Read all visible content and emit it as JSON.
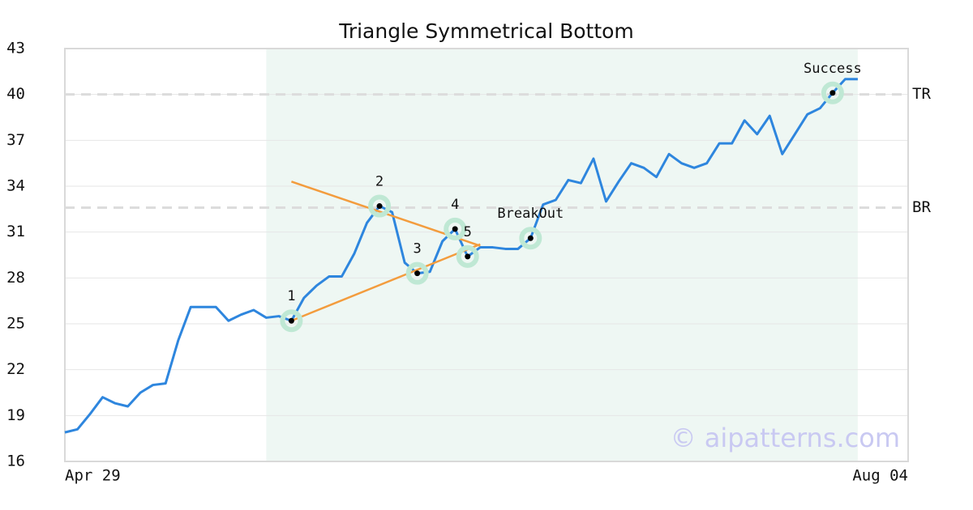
{
  "chart_data": {
    "type": "line",
    "title": "Triangle Symmetrical Bottom",
    "categories": [
      "Apr 29",
      null,
      null,
      null,
      null,
      null,
      null,
      null,
      null,
      null,
      null,
      null,
      null,
      null,
      null,
      null,
      null,
      null,
      null,
      null,
      null,
      null,
      null,
      null,
      null,
      null,
      null,
      null,
      null,
      null,
      null,
      null,
      null,
      null,
      null,
      null,
      null,
      null,
      null,
      null,
      null,
      null,
      null,
      null,
      null,
      null,
      null,
      null,
      null,
      null,
      null,
      null,
      null,
      null,
      null,
      null,
      null,
      null,
      null,
      null,
      null,
      null,
      null,
      null,
      null,
      null,
      null,
      "Aug 04"
    ],
    "series": [
      {
        "color": "#2e86de",
        "values": [
          17.9,
          18.1,
          19.1,
          20.2,
          19.8,
          19.6,
          20.5,
          21.0,
          21.1,
          23.9,
          26.1,
          26.1,
          26.1,
          25.2,
          25.6,
          25.9,
          25.4,
          25.5,
          25.2,
          26.7,
          27.5,
          28.1,
          28.1,
          29.6,
          31.6,
          32.7,
          32.3,
          29.0,
          28.3,
          28.4,
          30.4,
          31.2,
          29.4,
          30.0,
          30.0,
          29.9,
          29.9,
          30.6,
          32.8,
          33.1,
          34.4,
          34.2,
          35.8,
          33.0,
          34.3,
          35.5,
          35.2,
          34.6,
          36.1,
          35.5,
          35.2,
          35.5,
          36.8,
          36.8,
          38.3,
          37.4,
          38.6,
          36.1,
          37.4,
          38.7,
          39.1,
          40.1,
          41.0,
          41.0,
          null,
          null,
          null,
          null
        ]
      }
    ],
    "ylim": [
      16,
      43
    ],
    "yticks": [
      16,
      19,
      22,
      25,
      28,
      31,
      34,
      37,
      40,
      43
    ],
    "grid": true,
    "reference_lines": [
      {
        "label": "TR",
        "value": 40
      },
      {
        "label": "BR",
        "value": 32.6
      }
    ],
    "trend_lines": [
      {
        "color": "#f39c3d",
        "x": [
          18,
          33
        ],
        "values": [
          34.3,
          30.1
        ]
      },
      {
        "color": "#f39c3d",
        "x": [
          18,
          33
        ],
        "values": [
          25.2,
          30.2
        ]
      }
    ],
    "annotations": [
      {
        "label": "1",
        "x": 18,
        "y": 25.2
      },
      {
        "label": "2",
        "x": 25,
        "y": 32.7
      },
      {
        "label": "3",
        "x": 28,
        "y": 28.3
      },
      {
        "label": "4",
        "x": 31,
        "y": 31.2
      },
      {
        "label": "5",
        "x": 32,
        "y": 29.4
      },
      {
        "label": "BreakOut",
        "x": 37,
        "y": 30.6
      },
      {
        "label": "Success",
        "x": 61,
        "y": 40.1
      }
    ],
    "watermark": "© aipatterns.com"
  }
}
